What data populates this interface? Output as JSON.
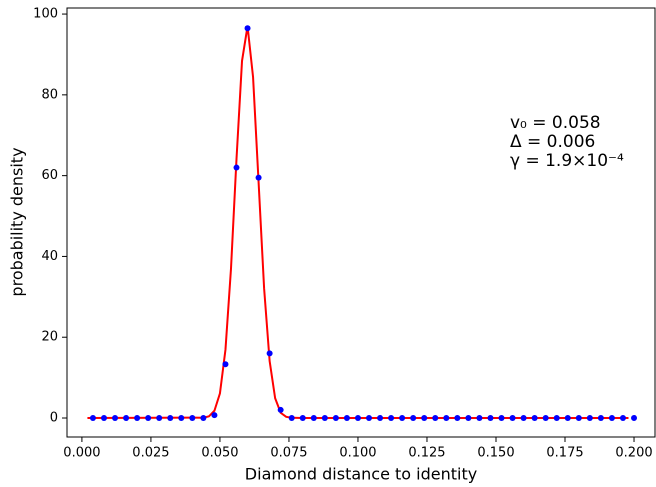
{
  "chart_data": {
    "type": "scatter",
    "xlabel": "Diamond distance to identity",
    "ylabel": "probability density",
    "annotations": [
      "v₀ = 0.058",
      "Δ = 0.006",
      "γ = 1.9×10⁻⁴"
    ],
    "xlim": [
      -0.0054,
      0.2076
    ],
    "ylim": [
      -4.7,
      101.5
    ],
    "xticks": [
      {
        "value": 0,
        "label": "0.000"
      },
      {
        "value": 0.025,
        "label": "0.025"
      },
      {
        "value": 0.05,
        "label": "0.050"
      },
      {
        "value": 0.075,
        "label": "0.075"
      },
      {
        "value": 0.1,
        "label": "0.100"
      },
      {
        "value": 0.125,
        "label": "0.125"
      },
      {
        "value": 0.15,
        "label": "0.150"
      },
      {
        "value": 0.175,
        "label": "0.175"
      },
      {
        "value": 0.2,
        "label": "0.200"
      }
    ],
    "yticks": [
      0,
      20,
      40,
      60,
      80,
      100
    ],
    "series": [
      {
        "type": "line",
        "color": "#ff0000",
        "x": [
          0.002,
          0.04,
          0.044,
          0.046,
          0.048,
          0.05,
          0.052,
          0.054,
          0.056,
          0.058,
          0.06,
          0.062,
          0.064,
          0.066,
          0.068,
          0.07,
          0.072,
          0.074,
          0.076,
          0.08,
          0.198
        ],
        "values": [
          0,
          0.1,
          0.07,
          0.4,
          1.8,
          6.1,
          16.9,
          36.9,
          64.1,
          88.4,
          97,
          84.4,
          58.4,
          32.1,
          14.1,
          4.9,
          1.3,
          0.3,
          0.05,
          0,
          0
        ]
      },
      {
        "type": "scatter",
        "color": "#0000ff",
        "x": [
          0.004,
          0.008,
          0.012,
          0.016,
          0.02,
          0.024,
          0.028,
          0.032,
          0.036,
          0.04,
          0.044,
          0.048,
          0.052,
          0.056,
          0.06,
          0.064,
          0.068,
          0.072,
          0.076,
          0.08,
          0.084,
          0.088,
          0.092,
          0.096,
          0.1,
          0.104,
          0.108,
          0.112,
          0.116,
          0.12,
          0.124,
          0.128,
          0.132,
          0.136,
          0.14,
          0.144,
          0.148,
          0.152,
          0.156,
          0.16,
          0.164,
          0.168,
          0.172,
          0.176,
          0.18,
          0.184,
          0.188,
          0.192,
          0.196,
          0.2
        ],
        "values": [
          0,
          0,
          0,
          0,
          0,
          0,
          0,
          0,
          0,
          0,
          0,
          0.7,
          13.3,
          62,
          96.5,
          59.5,
          16,
          2,
          0,
          0,
          0,
          0,
          0,
          0,
          0,
          0,
          0,
          0,
          0,
          0,
          0,
          0,
          0,
          0,
          0,
          0,
          0,
          0,
          0,
          0,
          0,
          0,
          0,
          0,
          0,
          0,
          0,
          0,
          0,
          0
        ]
      }
    ]
  }
}
